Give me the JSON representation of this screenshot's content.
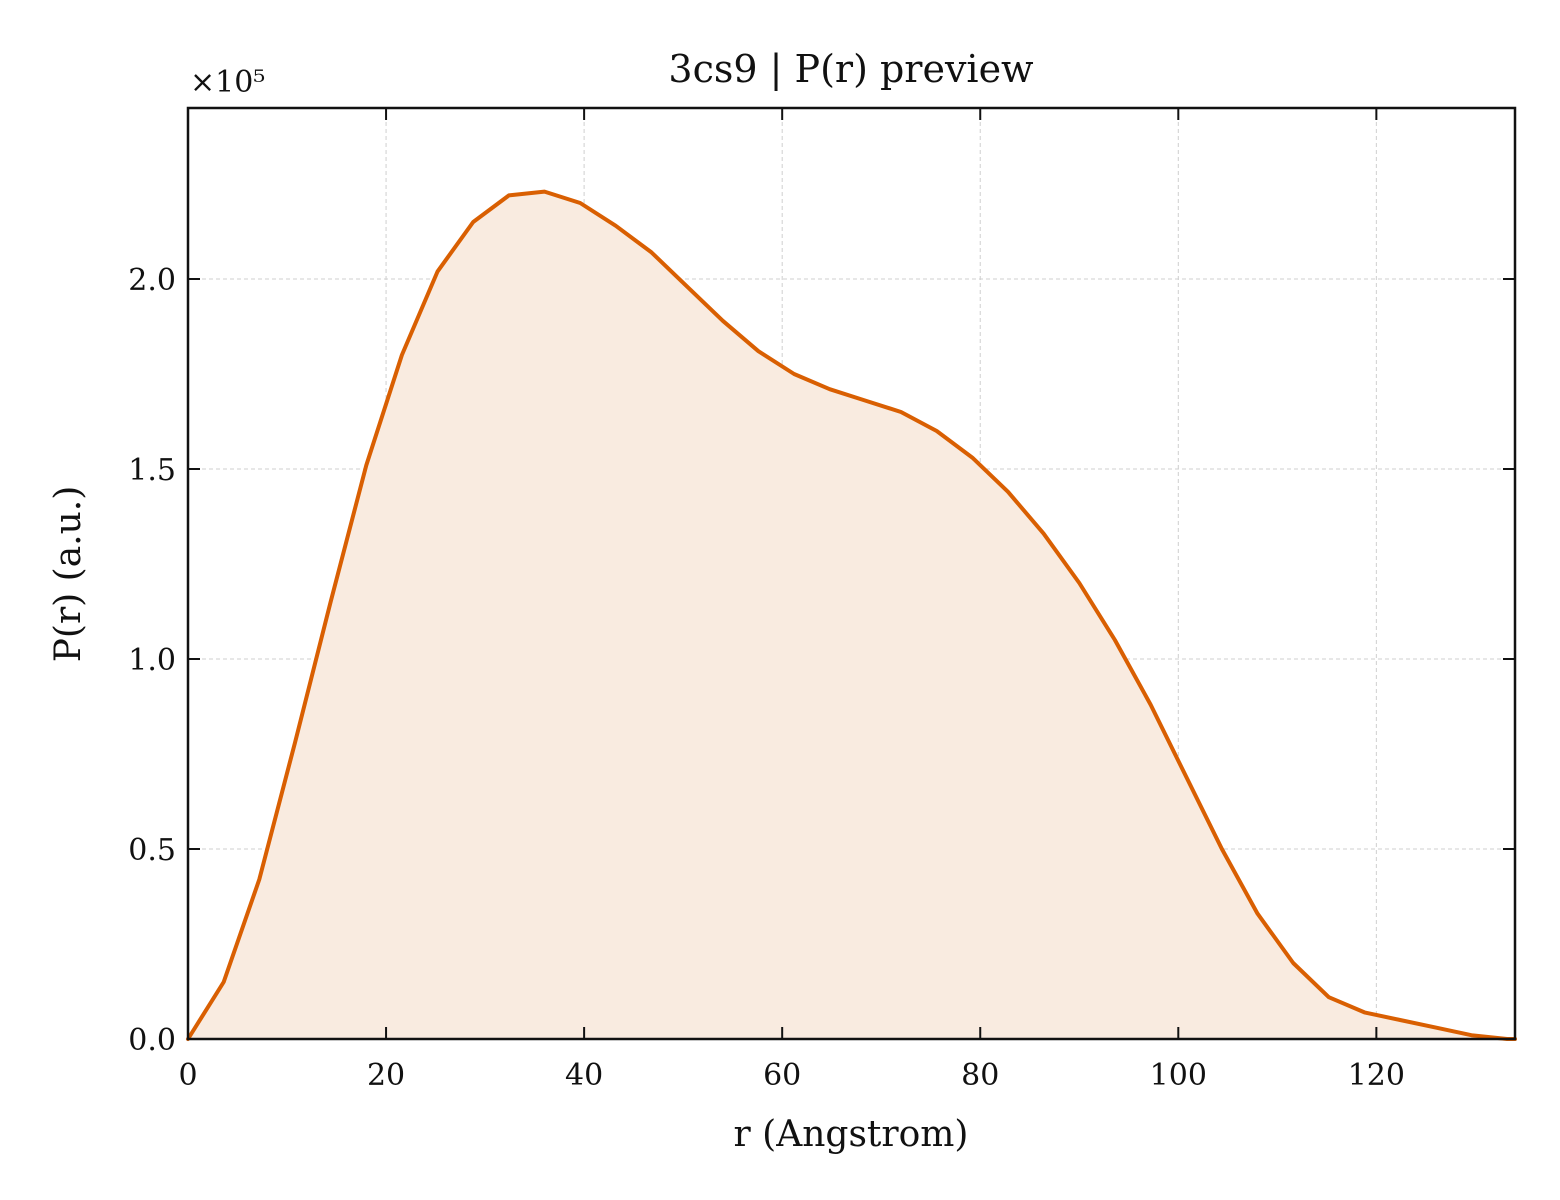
{
  "chart_data": {
    "type": "area",
    "title": "3cs9 | P(r) preview",
    "xlabel": "r (Angstrom)",
    "ylabel": "P(r) (a.u.)",
    "y_offset_label": "×10⁵",
    "xlim": [
      0,
      134
    ],
    "ylim": [
      0,
      2.45
    ],
    "xticks": [
      0,
      20,
      40,
      60,
      80,
      100,
      120
    ],
    "xtick_labels": [
      "0",
      "20",
      "40",
      "60",
      "80",
      "100",
      "120"
    ],
    "yticks": [
      0,
      0.5,
      1.0,
      1.5,
      2.0
    ],
    "ytick_labels": [
      "0.0",
      "0.5",
      "1.0",
      "1.5",
      "2.0"
    ],
    "grid": true,
    "colors": {
      "line": "#d95f02",
      "fill": "#f9ebe0"
    },
    "series": [
      {
        "x": [
          0,
          3.6,
          7.2,
          10.8,
          14.4,
          18.0,
          21.6,
          25.2,
          28.8,
          32.4,
          36.0,
          39.6,
          43.2,
          46.8,
          50.4,
          54.0,
          57.6,
          61.2,
          64.8,
          68.4,
          72.0,
          75.6,
          79.2,
          82.8,
          86.4,
          90.0,
          93.6,
          97.2,
          100.8,
          104.4,
          108.0,
          111.6,
          115.2,
          118.8,
          122.4,
          126.0,
          129.6,
          133.2,
          134.0
        ],
        "y": [
          0.0,
          0.15,
          0.42,
          0.78,
          1.15,
          1.51,
          1.8,
          2.02,
          2.15,
          2.22,
          2.23,
          2.2,
          2.14,
          2.07,
          1.98,
          1.89,
          1.81,
          1.75,
          1.71,
          1.68,
          1.65,
          1.6,
          1.53,
          1.44,
          1.33,
          1.2,
          1.05,
          0.88,
          0.69,
          0.5,
          0.33,
          0.2,
          0.11,
          0.07,
          0.05,
          0.03,
          0.01,
          0.0,
          0.0
        ]
      }
    ]
  }
}
